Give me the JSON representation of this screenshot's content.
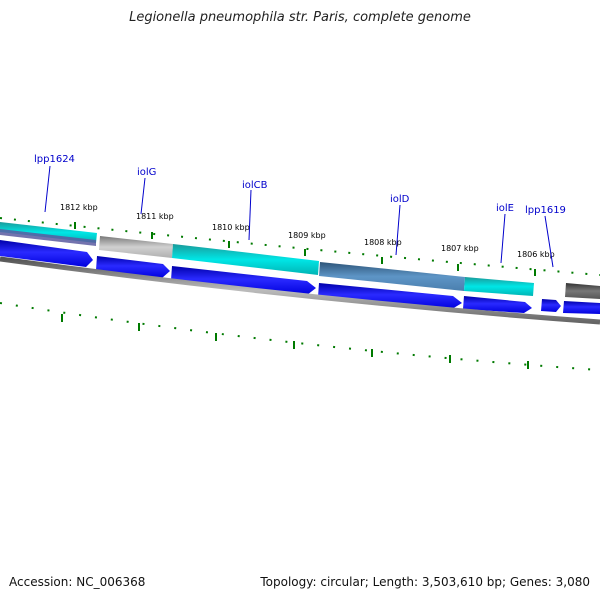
{
  "title": "Legionella pneumophila str. Paris, complete genome",
  "footer": {
    "accession": "Accession: NC_006368",
    "summary": "Topology: circular; Length: 3,503,610 bp; Genes: 3,080"
  },
  "kbp_ticks": [
    "1812 kbp",
    "1811 kbp",
    "1810 kbp",
    "1809 kbp",
    "1808 kbp",
    "1807 kbp",
    "1806 kbp"
  ],
  "gene_labels": [
    "lpp1624",
    "iolG",
    "iolCB",
    "iolD",
    "iolE",
    "lpp1619"
  ],
  "colors": {
    "cds_blue": "#0000ee",
    "cog_teal": "#00c8c8",
    "cog_gray": "#a8a8a8",
    "cog_steel": "#4a7fae",
    "cog_dark": "#555555",
    "tick_green": "#007a00",
    "label_blue": "#0000cc",
    "backbone": "#777777"
  }
}
